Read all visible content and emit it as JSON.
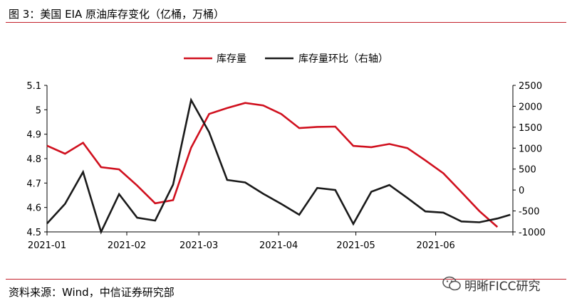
{
  "header": {
    "title": "图 3：美国 EIA 原油库存变化（亿桶，万桶）"
  },
  "footer": {
    "source": "资料来源：Wind，中信证券研究部",
    "watermark": "明晰FICC研究"
  },
  "colors": {
    "accent": "#c3202b",
    "series_primary": "#d0101e",
    "series_secondary": "#1a1a1a"
  },
  "chart_data": {
    "type": "line",
    "title": "",
    "xlabel": "",
    "ylabel": "",
    "legend_position": "top-center",
    "grid": false,
    "x_ticks": [
      "2021-01",
      "2021-02",
      "2021-03",
      "2021-04",
      "2021-05",
      "2021-06"
    ],
    "ylim_left": [
      4.5,
      5.1
    ],
    "ylim_right": [
      -1000,
      2500
    ],
    "y_ticks_left": [
      "4.5",
      "4.6",
      "4.7",
      "4.8",
      "4.9",
      "5",
      "5.1"
    ],
    "y_ticks_right": [
      "-1000",
      "-500",
      "0",
      "500",
      "1000",
      "1500",
      "2000",
      "2500"
    ],
    "series": [
      {
        "name": "库存量",
        "axis": "left",
        "color": "#d0101e",
        "x": [
          "2021-01-01",
          "2021-01-08",
          "2021-01-15",
          "2021-01-22",
          "2021-01-29",
          "2021-02-05",
          "2021-02-12",
          "2021-02-19",
          "2021-02-26",
          "2021-03-05",
          "2021-03-12",
          "2021-03-19",
          "2021-03-26",
          "2021-04-02",
          "2021-04-09",
          "2021-04-16",
          "2021-04-23",
          "2021-04-30",
          "2021-05-07",
          "2021-05-14",
          "2021-05-21",
          "2021-05-28",
          "2021-06-04",
          "2021-06-11",
          "2021-06-18",
          "2021-06-25"
        ],
        "values": [
          4.853,
          4.82,
          4.865,
          4.765,
          4.756,
          4.69,
          4.617,
          4.63,
          4.845,
          4.983,
          5.007,
          5.028,
          5.018,
          4.983,
          4.925,
          4.93,
          4.931,
          4.852,
          4.847,
          4.86,
          4.843,
          4.793,
          4.74,
          4.663,
          4.585,
          4.52
        ]
      },
      {
        "name": "库存量环比（右轴）",
        "axis": "right",
        "color": "#1a1a1a",
        "x": [
          "2021-01-01",
          "2021-01-08",
          "2021-01-15",
          "2021-01-22",
          "2021-01-29",
          "2021-02-05",
          "2021-02-12",
          "2021-02-19",
          "2021-02-26",
          "2021-03-05",
          "2021-03-12",
          "2021-03-19",
          "2021-03-26",
          "2021-04-02",
          "2021-04-09",
          "2021-04-16",
          "2021-04-23",
          "2021-04-30",
          "2021-05-07",
          "2021-05-14",
          "2021-05-21",
          "2021-05-28",
          "2021-06-04",
          "2021-06-11",
          "2021-06-18",
          "2021-06-25",
          "2021-06-30"
        ],
        "values": [
          -800,
          -330,
          430,
          -1000,
          -100,
          -660,
          -730,
          130,
          2150,
          1380,
          240,
          180,
          -90,
          -330,
          -590,
          50,
          0,
          -810,
          -40,
          120,
          -190,
          -510,
          -540,
          -750,
          -770,
          -680,
          -590
        ]
      }
    ]
  }
}
